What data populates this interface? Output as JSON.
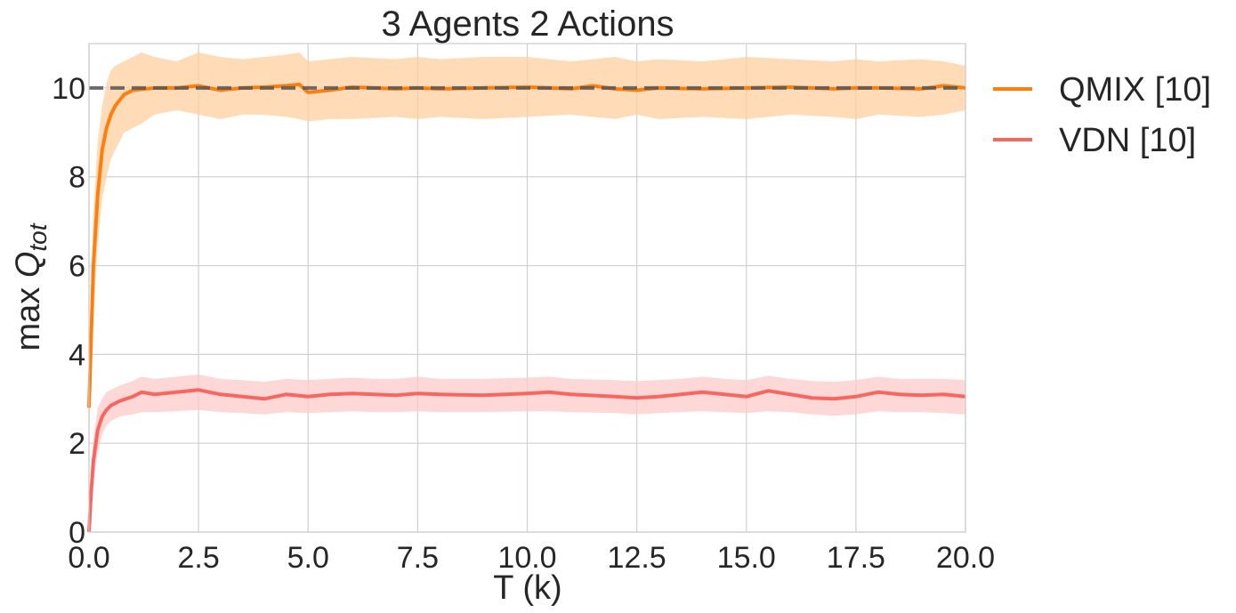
{
  "chart_data": {
    "type": "line",
    "title": "3 Agents 2 Actions",
    "xlabel": "T (k)",
    "ylabel_prefix": "max ",
    "ylabel_symbol": "Q",
    "ylabel_subscript": "tot",
    "xlim": [
      0,
      20
    ],
    "ylim": [
      0,
      11
    ],
    "x_ticks": [
      "0.0",
      "2.5",
      "5.0",
      "7.5",
      "10.0",
      "12.5",
      "15.0",
      "17.5",
      "20.0"
    ],
    "y_ticks": [
      "0",
      "2",
      "4",
      "6",
      "8",
      "10"
    ],
    "grid": true,
    "legend_position": "outside-right-top",
    "reference_line": {
      "y": 10,
      "style": "dashed",
      "color": "#555555"
    },
    "series": [
      {
        "name": "QMIX [10]",
        "color": "#ff7f0e",
        "fill_color": "#ffcf9f",
        "x": [
          0,
          0.1,
          0.2,
          0.3,
          0.4,
          0.5,
          0.6,
          0.8,
          1.0,
          1.2,
          1.5,
          2.0,
          2.5,
          3.0,
          3.5,
          4.0,
          4.5,
          4.8,
          5.0,
          5.5,
          6.0,
          7.0,
          7.5,
          8.0,
          9.0,
          10.0,
          11.0,
          11.5,
          12.0,
          12.5,
          13.0,
          14.0,
          15.0,
          16.0,
          17.0,
          17.5,
          18.0,
          19.0,
          19.5,
          20.0
        ],
        "mean": [
          2.8,
          6.0,
          7.6,
          8.6,
          9.1,
          9.4,
          9.6,
          9.85,
          9.95,
          9.97,
          10.0,
          10.0,
          10.05,
          9.95,
          10.0,
          10.02,
          10.05,
          10.08,
          9.9,
          9.95,
          10.02,
          9.98,
          10.0,
          9.98,
          10.0,
          10.02,
          9.98,
          10.05,
          9.98,
          9.95,
          10.0,
          9.98,
          10.0,
          10.02,
          9.98,
          10.0,
          10.0,
          9.98,
          10.05,
          10.0
        ],
        "lower": [
          2.0,
          4.8,
          6.5,
          7.5,
          8.0,
          8.4,
          8.6,
          9.0,
          9.1,
          9.2,
          9.4,
          9.5,
          9.4,
          9.3,
          9.4,
          9.4,
          9.35,
          9.3,
          9.25,
          9.3,
          9.3,
          9.35,
          9.3,
          9.35,
          9.3,
          9.35,
          9.4,
          9.35,
          9.3,
          9.4,
          9.3,
          9.35,
          9.3,
          9.4,
          9.35,
          9.3,
          9.4,
          9.35,
          9.4,
          9.5
        ],
        "upper": [
          3.6,
          7.2,
          8.8,
          9.6,
          10.1,
          10.4,
          10.5,
          10.6,
          10.7,
          10.8,
          10.7,
          10.6,
          10.8,
          10.7,
          10.65,
          10.7,
          10.75,
          10.8,
          10.6,
          10.65,
          10.7,
          10.65,
          10.7,
          10.65,
          10.7,
          10.7,
          10.6,
          10.65,
          10.7,
          10.6,
          10.65,
          10.6,
          10.7,
          10.65,
          10.6,
          10.65,
          10.6,
          10.65,
          10.6,
          10.5
        ]
      },
      {
        "name": "VDN [10]",
        "color": "#f8665f",
        "fill_color": "#fdcaca",
        "x": [
          0,
          0.05,
          0.1,
          0.2,
          0.3,
          0.4,
          0.5,
          0.7,
          1.0,
          1.2,
          1.5,
          2.0,
          2.5,
          3.0,
          3.5,
          4.0,
          4.5,
          5.0,
          5.5,
          6.0,
          6.5,
          7.0,
          7.5,
          8.0,
          9.0,
          10.0,
          10.5,
          11.0,
          12.0,
          12.5,
          13.0,
          13.5,
          14.0,
          14.5,
          15.0,
          15.5,
          16.0,
          16.5,
          17.0,
          17.5,
          18.0,
          18.5,
          19.0,
          19.5,
          20.0
        ],
        "mean": [
          0.0,
          0.9,
          1.6,
          2.3,
          2.6,
          2.75,
          2.85,
          2.95,
          3.05,
          3.15,
          3.1,
          3.15,
          3.2,
          3.1,
          3.05,
          3.0,
          3.1,
          3.05,
          3.1,
          3.12,
          3.1,
          3.08,
          3.12,
          3.1,
          3.08,
          3.12,
          3.15,
          3.1,
          3.05,
          3.02,
          3.05,
          3.1,
          3.15,
          3.1,
          3.05,
          3.18,
          3.1,
          3.02,
          3.0,
          3.05,
          3.15,
          3.1,
          3.08,
          3.1,
          3.05
        ],
        "lower": [
          0.0,
          0.5,
          1.1,
          1.8,
          2.2,
          2.4,
          2.5,
          2.6,
          2.65,
          2.7,
          2.7,
          2.72,
          2.75,
          2.7,
          2.68,
          2.65,
          2.7,
          2.68,
          2.7,
          2.72,
          2.7,
          2.7,
          2.72,
          2.7,
          2.7,
          2.72,
          2.72,
          2.7,
          2.68,
          2.65,
          2.68,
          2.7,
          2.72,
          2.7,
          2.68,
          2.72,
          2.7,
          2.65,
          2.62,
          2.65,
          2.72,
          2.7,
          2.7,
          2.68,
          2.65
        ],
        "upper": [
          0.5,
          1.4,
          2.1,
          2.8,
          3.0,
          3.15,
          3.2,
          3.3,
          3.4,
          3.5,
          3.45,
          3.5,
          3.55,
          3.45,
          3.42,
          3.38,
          3.45,
          3.42,
          3.45,
          3.48,
          3.45,
          3.45,
          3.5,
          3.45,
          3.45,
          3.48,
          3.5,
          3.45,
          3.42,
          3.4,
          3.42,
          3.45,
          3.5,
          3.45,
          3.42,
          3.52,
          3.45,
          3.4,
          3.38,
          3.42,
          3.5,
          3.45,
          3.45,
          3.45,
          3.42
        ]
      }
    ]
  }
}
